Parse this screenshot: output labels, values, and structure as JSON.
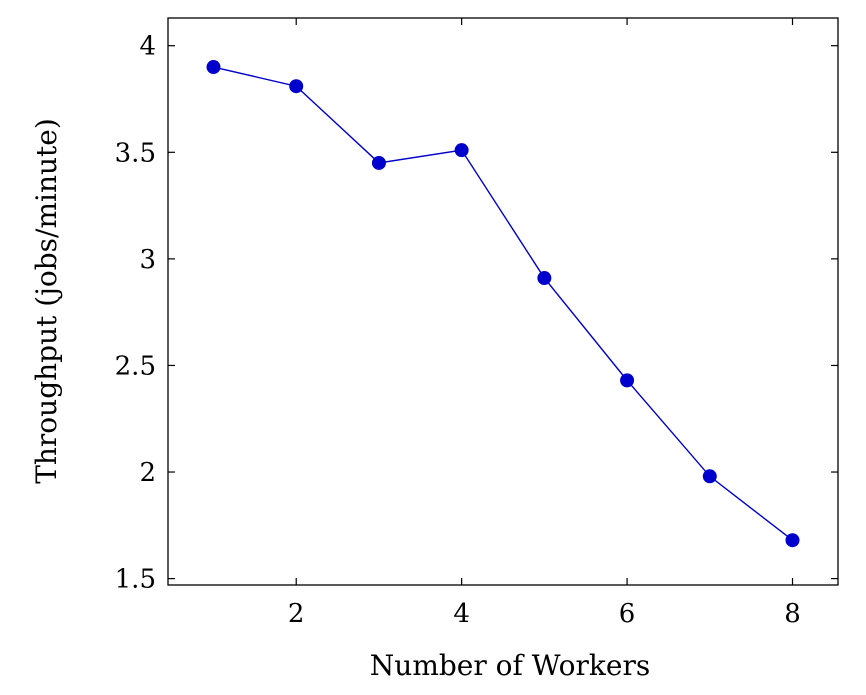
{
  "chart_data": {
    "type": "line",
    "title": "",
    "xlabel": "Number of Workers",
    "ylabel": "Throughput (jobs/minute)",
    "x": [
      1,
      2,
      3,
      4,
      5,
      6,
      7,
      8
    ],
    "series": [
      {
        "values": [
          3.9,
          3.81,
          3.45,
          3.51,
          2.91,
          2.43,
          1.98,
          1.68
        ],
        "color": "#0000cc",
        "marker": "circle"
      }
    ],
    "xlim": [
      0.45,
      8.55
    ],
    "ylim": [
      1.47,
      4.13
    ],
    "xticks": [
      2,
      4,
      6,
      8
    ],
    "xtick_labels": [
      "2",
      "4",
      "6",
      "8"
    ],
    "yticks": [
      1.5,
      2,
      2.5,
      3,
      3.5,
      4
    ],
    "ytick_labels": [
      "1.5",
      "2",
      "2.5",
      "3",
      "3.5",
      "4"
    ],
    "grid": false,
    "legend": "none"
  }
}
